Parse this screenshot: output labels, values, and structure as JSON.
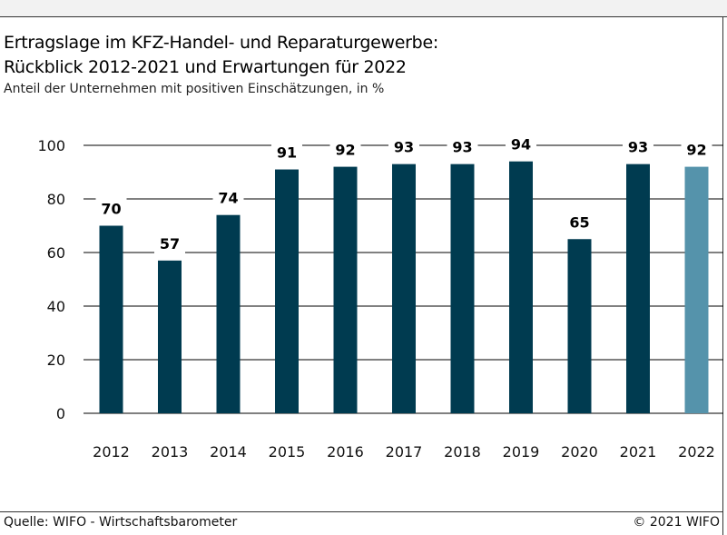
{
  "title_line1": "Ertragslage im KFZ-Handel- und Reparaturgewerbe:",
  "title_line2": "Rückblick 2012-2021 und Erwartungen für 2022",
  "subtitle": "Anteil der Unternehmen mit positiven Einschätzungen, in %",
  "source": "Quelle: WIFO - Wirtschaftsbarometer",
  "copyright": "© 2021 WIFO",
  "chart_data": {
    "type": "bar",
    "title": "Ertragslage im KFZ-Handel- und Reparaturgewerbe: Rückblick 2012-2021 und Erwartungen für 2022",
    "subtitle": "Anteil der Unternehmen mit positiven Einschätzungen, in %",
    "xlabel": "",
    "ylabel": "",
    "categories": [
      "2012",
      "2013",
      "2014",
      "2015",
      "2016",
      "2017",
      "2018",
      "2019",
      "2020",
      "2021",
      "2022"
    ],
    "values": [
      70,
      57,
      74,
      91,
      92,
      93,
      93,
      94,
      65,
      93,
      92
    ],
    "ylim": [
      0,
      100
    ],
    "yticks": [
      0,
      20,
      40,
      60,
      80,
      100
    ],
    "grid": true,
    "colors": {
      "bar": "#003b50",
      "forecast_bar": "#5593ab",
      "grid": "#000000"
    },
    "forecast_categories": [
      "2022"
    ]
  }
}
